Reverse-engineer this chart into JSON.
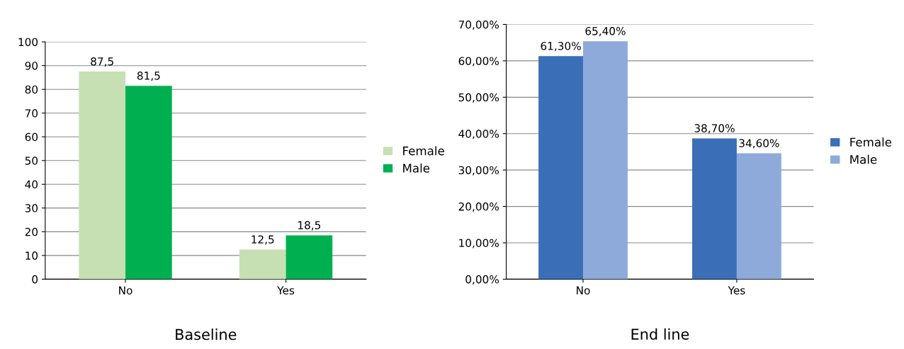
{
  "chart_data": [
    {
      "type": "bar",
      "title": "Baseline",
      "categories": [
        "No",
        "Yes"
      ],
      "series": [
        {
          "name": "Female",
          "color": "#c6e0b4",
          "values": [
            87.5,
            12.5
          ],
          "value_labels": [
            "87,5",
            "12,5"
          ]
        },
        {
          "name": "Male",
          "color": "#00b050",
          "values": [
            81.5,
            18.5
          ],
          "value_labels": [
            "81,5",
            "18,5"
          ]
        }
      ],
      "ylim": [
        0,
        100
      ],
      "yticks": [
        0,
        10,
        20,
        30,
        40,
        50,
        60,
        70,
        80,
        90,
        100
      ],
      "grid": "y",
      "legend": "right"
    },
    {
      "type": "bar",
      "title": "End line",
      "categories": [
        "No",
        "Yes"
      ],
      "series": [
        {
          "name": "Female",
          "color": "#3a6fb8",
          "values": [
            61.3,
            38.7
          ],
          "value_labels": [
            "61,30%",
            "38,70%"
          ]
        },
        {
          "name": "Male",
          "color": "#8eaadb",
          "values": [
            65.4,
            34.6
          ],
          "value_labels": [
            "65,40%",
            "34,60%"
          ]
        }
      ],
      "ylim": [
        0,
        70
      ],
      "yticks": [
        {
          "value": 0,
          "label": "0,00%"
        },
        {
          "value": 10,
          "label": "10,00%"
        },
        {
          "value": 20,
          "label": "20,00%"
        },
        {
          "value": 30,
          "label": "30,00%"
        },
        {
          "value": 40,
          "label": "40,00%"
        },
        {
          "value": 50,
          "label": "50,00%"
        },
        {
          "value": 60,
          "label": "60,00%"
        },
        {
          "value": 70,
          "label": "70,00%"
        }
      ],
      "grid": "y",
      "legend": "right"
    }
  ]
}
